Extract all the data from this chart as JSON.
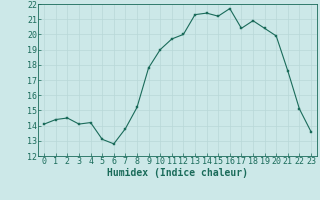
{
  "x": [
    0,
    1,
    2,
    3,
    4,
    5,
    6,
    7,
    8,
    9,
    10,
    11,
    12,
    13,
    14,
    15,
    16,
    17,
    18,
    19,
    20,
    21,
    22,
    23
  ],
  "y": [
    14.1,
    14.4,
    14.5,
    14.1,
    14.2,
    13.1,
    12.8,
    13.8,
    15.2,
    17.8,
    19.0,
    19.7,
    20.0,
    21.3,
    21.4,
    21.2,
    21.7,
    20.4,
    20.9,
    20.4,
    19.9,
    17.6,
    15.1,
    13.6
  ],
  "xlabel": "Humidex (Indice chaleur)",
  "ylim": [
    12,
    22
  ],
  "xlim": [
    -0.5,
    23.5
  ],
  "yticks": [
    12,
    13,
    14,
    15,
    16,
    17,
    18,
    19,
    20,
    21,
    22
  ],
  "xticks": [
    0,
    1,
    2,
    3,
    4,
    5,
    6,
    7,
    8,
    9,
    10,
    11,
    12,
    13,
    14,
    15,
    16,
    17,
    18,
    19,
    20,
    21,
    22,
    23
  ],
  "line_color": "#1a6b5a",
  "marker_color": "#1a6b5a",
  "bg_color": "#cce8e8",
  "grid_major_color": "#b8d8d8",
  "grid_minor_color": "#d8eded",
  "tick_label_color": "#1a6b5a",
  "xlabel_color": "#1a6b5a",
  "spine_color": "#1a6b5a",
  "font_size": 6,
  "xlabel_fontsize": 7
}
